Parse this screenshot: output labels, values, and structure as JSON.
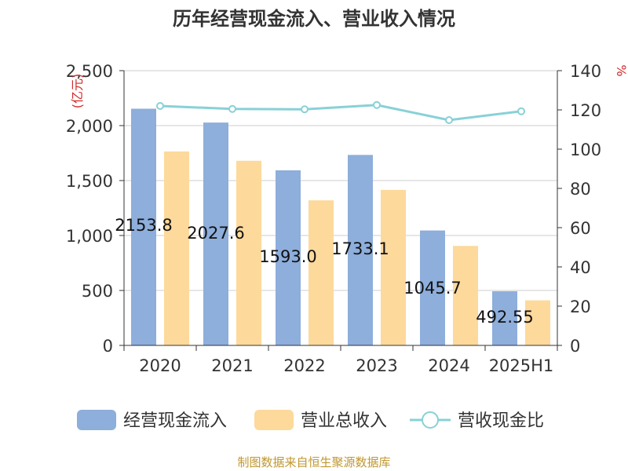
{
  "chart_data": {
    "type": "bar",
    "title": "历年经营现金流入、营业收入情况",
    "categories": [
      "2020",
      "2021",
      "2022",
      "2023",
      "2024",
      "2025H1"
    ],
    "ylabel_left": "亿元",
    "ylabel_right": "%",
    "ylim_left": [
      0,
      2500
    ],
    "ylim_right": [
      0,
      140
    ],
    "yticks_left": [
      "0",
      "500",
      "1,000",
      "1,500",
      "2,000",
      "2,500"
    ],
    "yticks_right": [
      "0",
      "20",
      "40",
      "60",
      "80",
      "100",
      "120",
      "140"
    ],
    "grid": true,
    "legend_position": "bottom",
    "series": [
      {
        "name": "经营现金流入",
        "type": "bar",
        "axis": "left",
        "color": "#8eaedb",
        "values": [
          2153.8,
          2027.6,
          1593.0,
          1733.1,
          1045.7,
          492.55
        ],
        "labels": [
          "2153.8",
          "2027.6",
          "1593.0",
          "1733.1",
          "1045.7",
          "492.55"
        ]
      },
      {
        "name": "营业总收入",
        "type": "bar",
        "axis": "left",
        "color": "#fdd99b",
        "values": [
          1765,
          1680,
          1320,
          1415,
          905,
          410
        ]
      },
      {
        "name": "营收现金比",
        "type": "line",
        "axis": "right",
        "color": "#88d1d6",
        "values": [
          122,
          120.5,
          120.3,
          122.5,
          114.8,
          119.3
        ]
      }
    ]
  },
  "footer": {
    "source": "制图数据来自恒生聚源数据库"
  }
}
